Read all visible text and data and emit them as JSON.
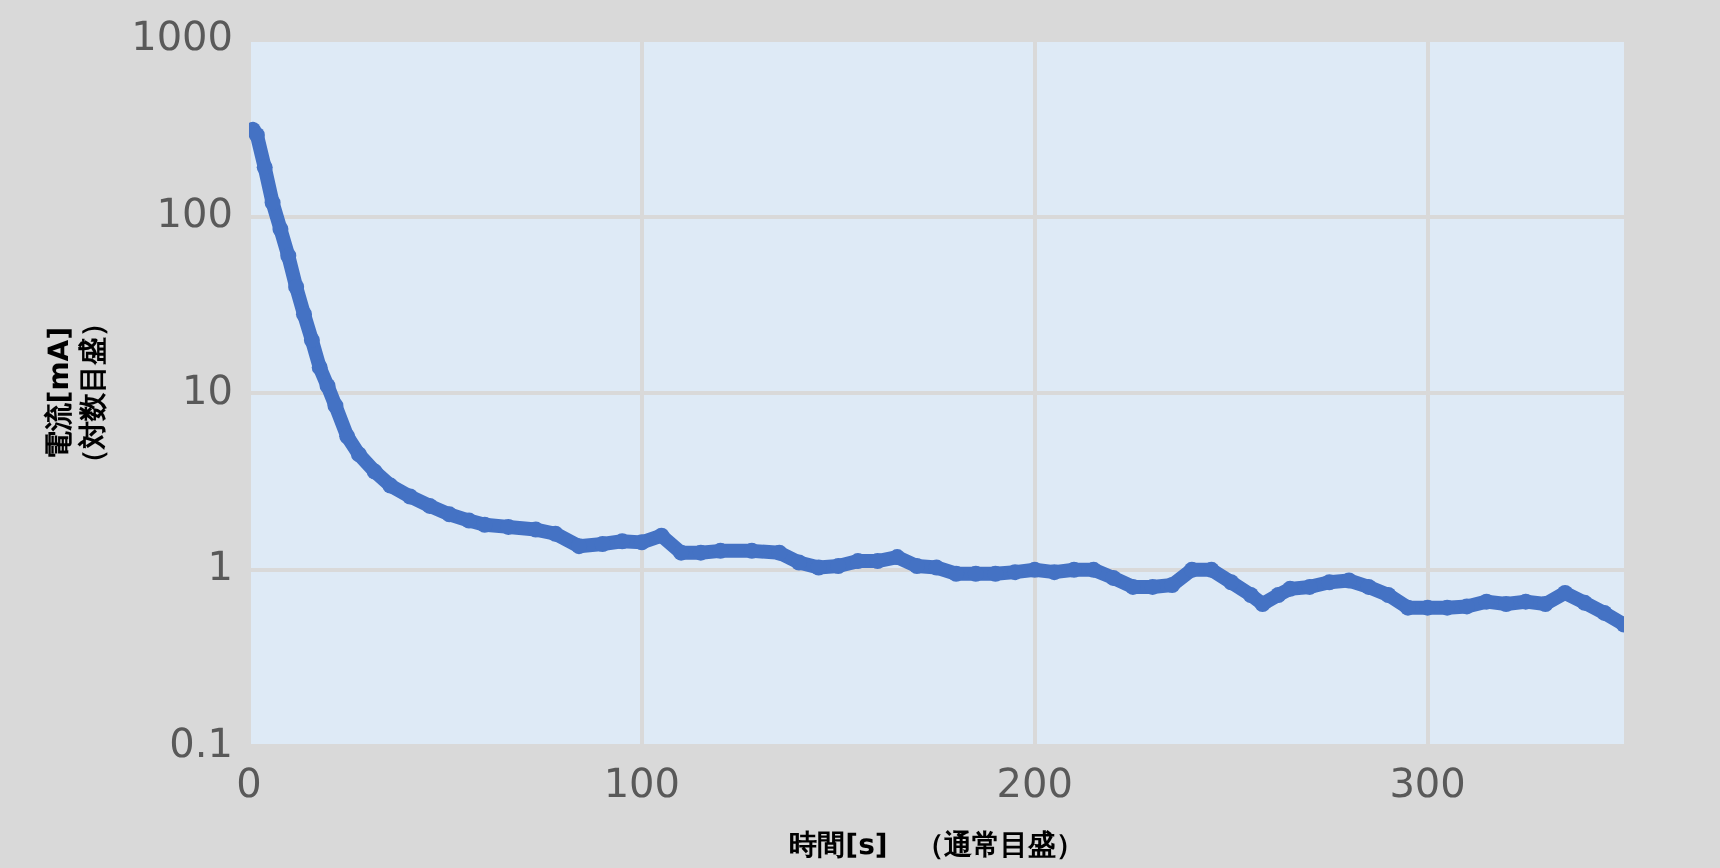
{
  "chart_data": {
    "type": "line",
    "xlabel": "時間[s]　（通常目盛）",
    "ylabel": "電流[mA]\n（対数目盛）",
    "log": "y",
    "xlim": [
      0,
      350
    ],
    "xticks": [
      0,
      100,
      200,
      300
    ],
    "ylim": [
      0.1,
      1000
    ],
    "yticks": [
      0.1,
      1,
      10,
      100,
      1000
    ],
    "grid": true,
    "legend": false,
    "marker": "circle",
    "line_style": "solid",
    "series": [
      {
        "color": "#4472c4",
        "x": [
          1,
          2,
          4,
          6,
          8,
          10,
          12,
          14,
          16,
          18,
          20,
          22,
          25,
          28,
          32,
          36,
          41,
          46,
          51,
          56,
          60,
          66,
          73,
          78,
          84,
          90,
          95,
          100,
          105,
          110,
          115,
          120,
          128,
          135,
          140,
          145,
          150,
          155,
          160,
          165,
          170,
          175,
          180,
          185,
          190,
          195,
          200,
          205,
          210,
          215,
          220,
          225,
          230,
          235,
          240,
          245,
          250,
          255,
          258,
          262,
          265,
          270,
          275,
          280,
          285,
          290,
          295,
          300,
          305,
          310,
          315,
          320,
          325,
          330,
          335,
          340,
          345,
          350
        ],
        "values": [
          310,
          290,
          190,
          120,
          85,
          60,
          40,
          28,
          20,
          14,
          11,
          8.5,
          5.7,
          4.5,
          3.6,
          3,
          2.6,
          2.3,
          2.06,
          1.9,
          1.8,
          1.75,
          1.69,
          1.6,
          1.36,
          1.4,
          1.45,
          1.43,
          1.56,
          1.25,
          1.25,
          1.28,
          1.28,
          1.25,
          1.1,
          1.03,
          1.05,
          1.12,
          1.12,
          1.18,
          1.05,
          1.03,
          0.95,
          0.95,
          0.95,
          0.97,
          1,
          0.97,
          1,
          1,
          0.9,
          0.8,
          0.8,
          0.82,
          1,
          1,
          0.85,
          0.72,
          0.64,
          0.72,
          0.78,
          0.8,
          0.85,
          0.87,
          0.8,
          0.72,
          0.61,
          0.61,
          0.61,
          0.62,
          0.66,
          0.64,
          0.66,
          0.64,
          0.74,
          0.65,
          0.57,
          0.49
        ]
      }
    ]
  }
}
